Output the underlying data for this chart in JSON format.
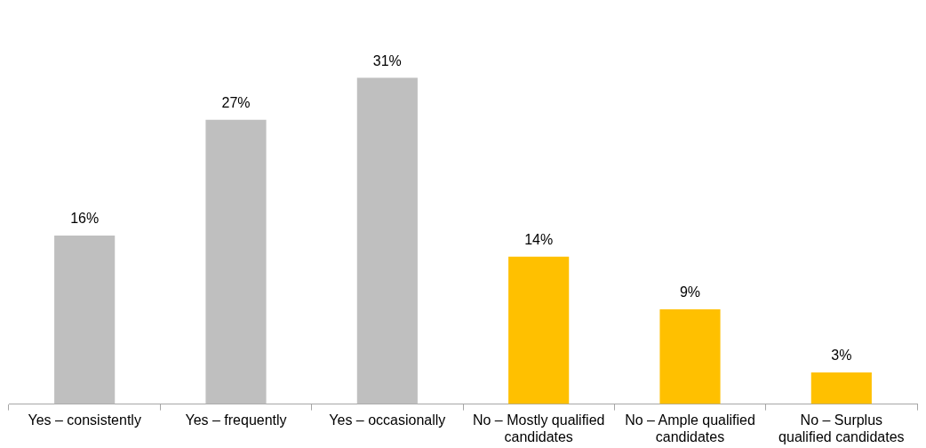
{
  "chart_data": {
    "type": "bar",
    "categories": [
      "Yes – consistently",
      "Yes – frequently",
      "Yes – occasionally",
      "No – Mostly qualified candidates",
      "No – Ample qualified candidates",
      "No – Surplus qualified candidates"
    ],
    "values": [
      16,
      27,
      31,
      14,
      9,
      3
    ],
    "colors": [
      "#bfbfbf",
      "#bfbfbf",
      "#bfbfbf",
      "#ffc000",
      "#ffc000",
      "#ffc000"
    ],
    "value_labels": [
      "16%",
      "27%",
      "31%",
      "14%",
      "9%",
      "3%"
    ],
    "grid": false,
    "legend": false
  }
}
